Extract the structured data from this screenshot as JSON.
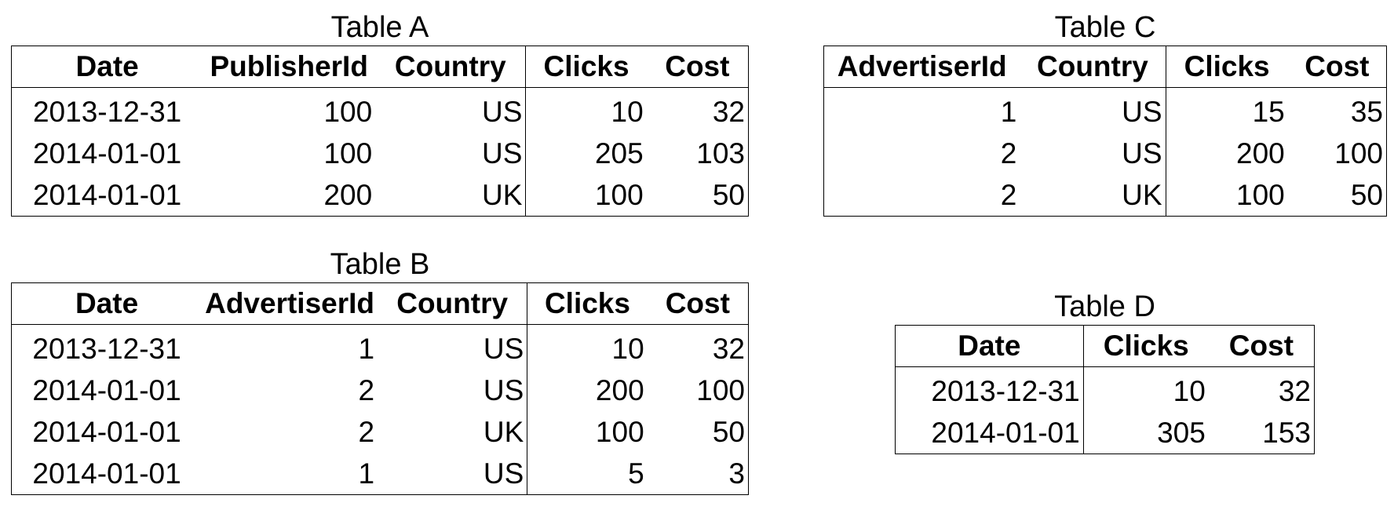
{
  "tables": {
    "a": {
      "title": "Table A",
      "headers": [
        "Date",
        "PublisherId",
        "Country",
        "Clicks",
        "Cost"
      ],
      "rows": [
        [
          "2013-12-31",
          "100",
          "US",
          "10",
          "32"
        ],
        [
          "2014-01-01",
          "100",
          "US",
          "205",
          "103"
        ],
        [
          "2014-01-01",
          "200",
          "UK",
          "100",
          "50"
        ]
      ]
    },
    "b": {
      "title": "Table B",
      "headers": [
        "Date",
        "AdvertiserId",
        "Country",
        "Clicks",
        "Cost"
      ],
      "rows": [
        [
          "2013-12-31",
          "1",
          "US",
          "10",
          "32"
        ],
        [
          "2014-01-01",
          "2",
          "US",
          "200",
          "100"
        ],
        [
          "2014-01-01",
          "2",
          "UK",
          "100",
          "50"
        ],
        [
          "2014-01-01",
          "1",
          "US",
          "5",
          "3"
        ]
      ]
    },
    "c": {
      "title": "Table C",
      "headers": [
        "AdvertiserId",
        "Country",
        "Clicks",
        "Cost"
      ],
      "rows": [
        [
          "1",
          "US",
          "15",
          "35"
        ],
        [
          "2",
          "US",
          "200",
          "100"
        ],
        [
          "2",
          "UK",
          "100",
          "50"
        ]
      ]
    },
    "d": {
      "title": "Table D",
      "headers": [
        "Date",
        "Clicks",
        "Cost"
      ],
      "rows": [
        [
          "2013-12-31",
          "10",
          "32"
        ],
        [
          "2014-01-01",
          "305",
          "153"
        ]
      ]
    }
  }
}
